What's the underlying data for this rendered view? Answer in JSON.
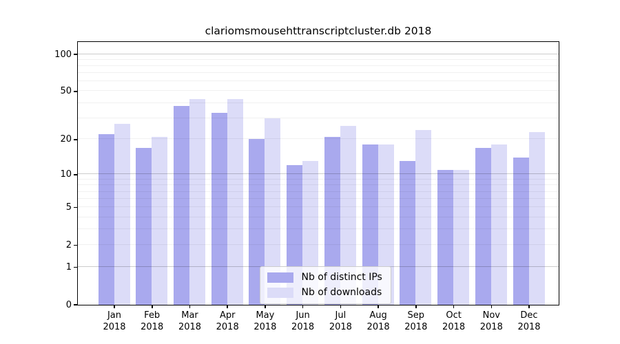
{
  "chart_data": {
    "type": "bar",
    "title": "clariomsmousehttranscriptcluster.db 2018",
    "xlabel": "",
    "ylabel": "",
    "yscale": "log1p",
    "ylim": [
      0,
      126
    ],
    "yticks": [
      0,
      1,
      2,
      5,
      10,
      20,
      50,
      100
    ],
    "grid": "on",
    "grid_major": [
      1,
      10,
      100
    ],
    "grid_minor": [
      2,
      3,
      4,
      5,
      6,
      7,
      8,
      9,
      20,
      30,
      40,
      50,
      60,
      70,
      80,
      90
    ],
    "categories": [
      "Jan",
      "Feb",
      "Mar",
      "Apr",
      "May",
      "Jun",
      "Jul",
      "Aug",
      "Sep",
      "Oct",
      "Nov",
      "Dec"
    ],
    "year": "2018",
    "series": [
      {
        "name": "Nb of distinct IPs",
        "color": "#a9a9ee",
        "values": [
          22,
          17,
          38,
          33,
          20,
          12,
          21,
          18,
          13,
          11,
          17,
          14
        ]
      },
      {
        "name": "Nb of downloads",
        "color": "#dcdcf8",
        "values": [
          27,
          21,
          43,
          43,
          30,
          13,
          26,
          18,
          24,
          11,
          18,
          23
        ]
      }
    ],
    "legend_position": "inside-bottom-center"
  }
}
